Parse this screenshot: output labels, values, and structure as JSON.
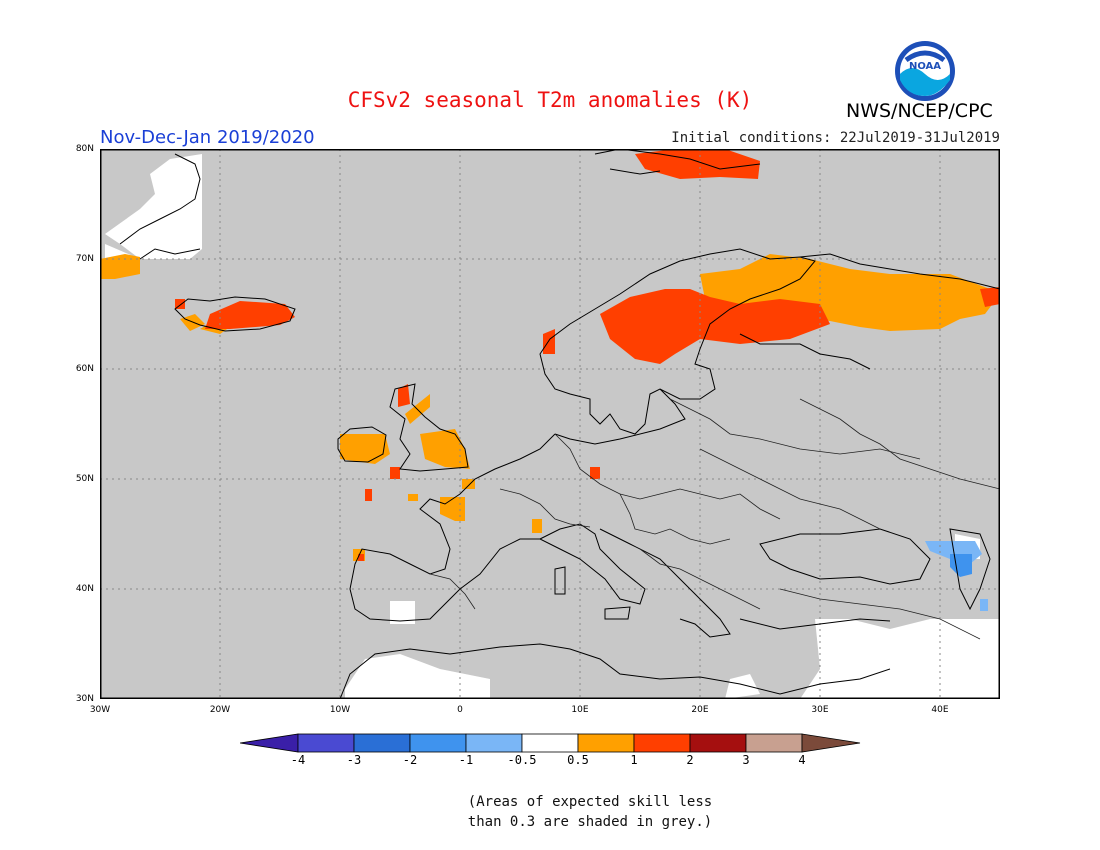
{
  "header": {
    "title": "CFSv2 seasonal T2m anomalies (K)",
    "agency": "NWS/NCEP/CPC",
    "season": "Nov-Dec-Jan 2019/2020",
    "initial_conditions": "Initial conditions: 22Jul2019-31Jul2019",
    "logo_text": "NOAA"
  },
  "map": {
    "background_color": "#c8c8c8",
    "lat_labels": [
      "80N",
      "70N",
      "60N",
      "50N",
      "40N",
      "30N"
    ],
    "lon_labels": [
      "30W",
      "20W",
      "10W",
      "0",
      "10E",
      "20E",
      "30E",
      "40E"
    ],
    "anomaly_regions": [
      {
        "name": "Scandinavia / Finland",
        "category": "1 to 2",
        "color": "#ff3f00"
      },
      {
        "name": "Northern Russia / Kola",
        "category": "0.5 to 1",
        "color": "#ffa000"
      },
      {
        "name": "Iceland",
        "category": "1 to 2",
        "color": "#ff3f00"
      },
      {
        "name": "British Isles",
        "category": "0.5 to 1",
        "color": "#ffa000"
      },
      {
        "name": "Svalbard",
        "category": "1 to 2",
        "color": "#ff3f00"
      },
      {
        "name": "Caucasus",
        "category": "-1 to -0.5",
        "color": "#6ab0f5"
      }
    ]
  },
  "colorbar": {
    "labels": [
      "-4",
      "-3",
      "-2",
      "-1",
      "-0.5",
      "0.5",
      "1",
      "2",
      "3",
      "4"
    ],
    "colors": [
      "#3a1fa8",
      "#4a4ad2",
      "#2a6fd6",
      "#3f93ee",
      "#7ab6f6",
      "#ffffff",
      "#ffa000",
      "#ff3f00",
      "#a50f0f",
      "#c8a090",
      "#7b4a3a"
    ]
  },
  "footnote": {
    "line1": "(Areas of expected skill less",
    "line2": "than 0.3 are shaded in grey.)"
  }
}
